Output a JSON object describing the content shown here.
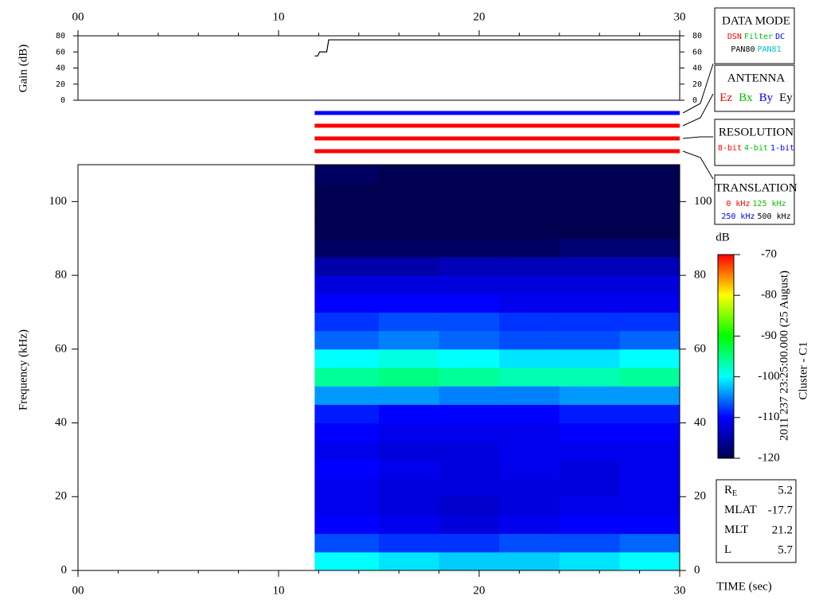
{
  "chart_data": {
    "type": "spectrogram",
    "xlabel": "TIME (sec)",
    "xlim": [
      0,
      30
    ],
    "xticks": [
      {
        "value": 0,
        "label": "00"
      },
      10,
      20,
      30
    ],
    "xminor": [
      2,
      4,
      6,
      8,
      12,
      14,
      16,
      18,
      22,
      24,
      26,
      28
    ],
    "gain": {
      "ylabel": "Gain (dB)",
      "ylim": [
        0,
        80
      ],
      "yticks": [
        0,
        20,
        40,
        60,
        80
      ],
      "x": [
        11.8,
        11.95,
        12.05,
        12.4,
        12.5,
        30
      ],
      "values": [
        55,
        55,
        60,
        60,
        75,
        75
      ],
      "color": "#000000"
    },
    "mode_bars": [
      {
        "color": "#0000ff",
        "start": 11.8,
        "end": 30
      },
      {
        "color": "#ff0000",
        "start": 11.8,
        "end": 30
      },
      {
        "color": "#ff0000",
        "start": 11.8,
        "end": 30
      },
      {
        "color": "#ff0000",
        "start": 11.8,
        "end": 30
      }
    ],
    "spectrogram": {
      "ylabel": "Frequency (kHz)",
      "ylim": [
        0,
        110
      ],
      "yticks": [
        0,
        20,
        40,
        60,
        80,
        100
      ],
      "time_bins": [
        11.8,
        15,
        18,
        21,
        24,
        27,
        30
      ],
      "freq_bins": [
        0,
        5,
        10,
        15,
        20,
        25,
        30,
        35,
        40,
        45,
        50,
        55,
        60,
        65,
        70,
        75,
        80,
        85,
        90,
        95,
        100,
        105,
        110
      ],
      "z": [
        [
          -100,
          -101,
          -102,
          -102,
          -101,
          -100
        ],
        [
          -107,
          -108,
          -108,
          -107,
          -107,
          -106
        ],
        [
          -110,
          -111,
          -112,
          -111,
          -110,
          -110
        ],
        [
          -111,
          -112,
          -113,
          -112,
          -111,
          -111
        ],
        [
          -111,
          -112,
          -112,
          -112,
          -112,
          -111
        ],
        [
          -110,
          -111,
          -112,
          -111,
          -112,
          -111
        ],
        [
          -111,
          -112,
          -112,
          -111,
          -111,
          -111
        ],
        [
          -110,
          -111,
          -111,
          -111,
          -110,
          -110
        ],
        [
          -109,
          -110,
          -110,
          -110,
          -109,
          -109
        ],
        [
          -104,
          -104,
          -105,
          -105,
          -104,
          -104
        ],
        [
          -96,
          -95,
          -96,
          -97,
          -97,
          -96
        ],
        [
          -100,
          -99,
          -100,
          -101,
          -101,
          -100
        ],
        [
          -106,
          -105,
          -106,
          -107,
          -107,
          -106
        ],
        [
          -108,
          -107,
          -107,
          -108,
          -108,
          -108
        ],
        [
          -110,
          -110,
          -110,
          -111,
          -111,
          -111
        ],
        [
          -112,
          -112,
          -112,
          -112,
          -112,
          -112
        ],
        [
          -115,
          -115,
          -114,
          -114,
          -114,
          -114
        ],
        [
          -119,
          -119,
          -119,
          -119,
          -118,
          -118
        ],
        [
          -120,
          -120,
          -120,
          -120,
          -120,
          -120
        ],
        [
          -120,
          -120,
          -120,
          -120,
          -120,
          -120
        ],
        [
          -120,
          -120,
          -120,
          -120,
          -120,
          -120
        ],
        [
          -119,
          -120,
          -120,
          -120,
          -120,
          -120
        ]
      ],
      "clim": [
        -120,
        -70
      ],
      "colormap": [
        "#000050",
        "#0000ff",
        "#00ffff",
        "#00ff00",
        "#ffff00",
        "#ff0000"
      ]
    },
    "colorbar": {
      "label": "dB",
      "ticks": [
        -70,
        -80,
        -90,
        -100,
        -110,
        -120
      ]
    },
    "side_title": "2011 237 23:25:00.000 (25 August)",
    "side_subtitle": "Cluster - C1",
    "legend_boxes": [
      {
        "title": "DATA MODE",
        "items": [
          {
            "text": "DSN",
            "color": "#ff0000"
          },
          {
            "text": "Filter",
            "color": "#00c000"
          },
          {
            "text": "DC",
            "color": "#0000ff"
          },
          {
            "text": "PAN80",
            "color": "#000000"
          },
          {
            "text": "PAN81",
            "color": "#00c0c0"
          }
        ]
      },
      {
        "title": "ANTENNA",
        "items": [
          {
            "text": "Ez",
            "color": "#ff0000"
          },
          {
            "text": "Bx",
            "color": "#00c000"
          },
          {
            "text": "By",
            "color": "#0000ff"
          },
          {
            "text": "Ey",
            "color": "#000000"
          }
        ]
      },
      {
        "title": "RESOLUTION",
        "items": [
          {
            "text": "8-bit",
            "color": "#ff0000"
          },
          {
            "text": "4-bit",
            "color": "#00c000"
          },
          {
            "text": "1-bit",
            "color": "#0000ff"
          }
        ]
      },
      {
        "title": "TRANSLATION",
        "items": [
          {
            "text": "0 kHz",
            "color": "#ff0000"
          },
          {
            "text": "125 kHz",
            "color": "#00c000"
          },
          {
            "text": "250 kHz",
            "color": "#0000ff"
          },
          {
            "text": "500 kHz",
            "color": "#000000"
          }
        ]
      }
    ],
    "ephemeris": [
      {
        "label": "R",
        "sub": "E",
        "value": 5.2
      },
      {
        "label": "MLAT",
        "value": -17.7
      },
      {
        "label": "MLT",
        "value": 21.2
      },
      {
        "label": "L",
        "value": 5.7
      }
    ]
  }
}
